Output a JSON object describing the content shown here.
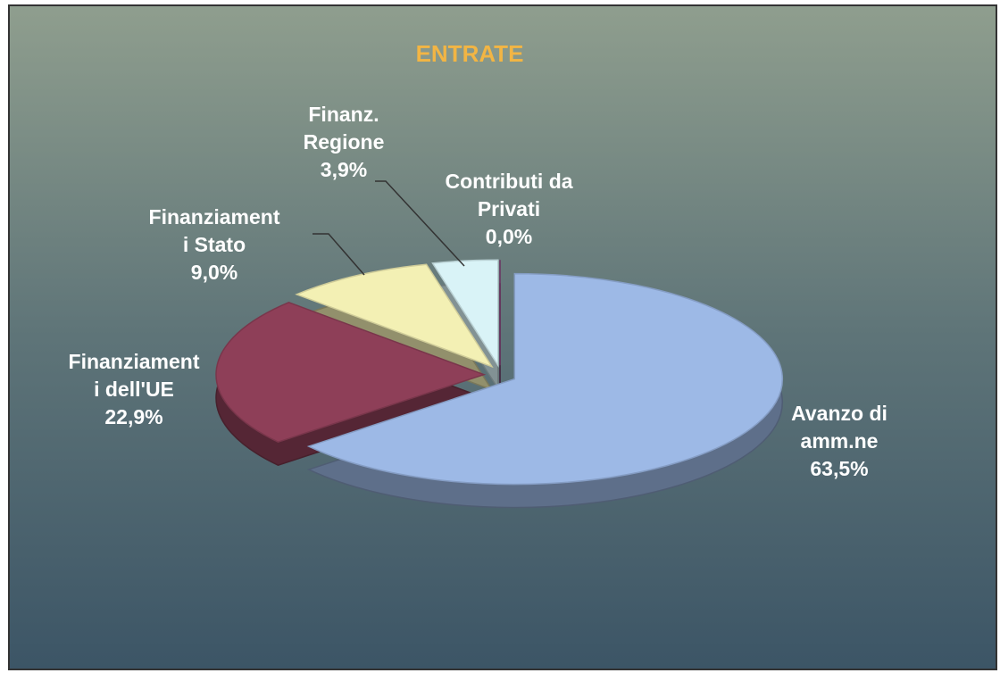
{
  "chart_data": {
    "type": "pie",
    "title": "ENTRATE",
    "categories": [
      [
        "Avanzo di",
        "amm.ne"
      ],
      [
        "Finanziament",
        "i dell'UE"
      ],
      [
        "Finanziament",
        "i Stato"
      ],
      [
        "Finanz.",
        "Regione"
      ],
      [
        "Contributi da",
        "Privati"
      ]
    ],
    "values": [
      63.5,
      22.9,
      9.0,
      3.9,
      0.0
    ],
    "value_labels": [
      "63,5%",
      "22,9%",
      "9,0%",
      "3,9%",
      "0,0%"
    ],
    "colors": [
      "#9db9e6",
      "#8e3f58",
      "#f3f0b4",
      "#d9f3f7",
      "#7d3c72"
    ]
  }
}
